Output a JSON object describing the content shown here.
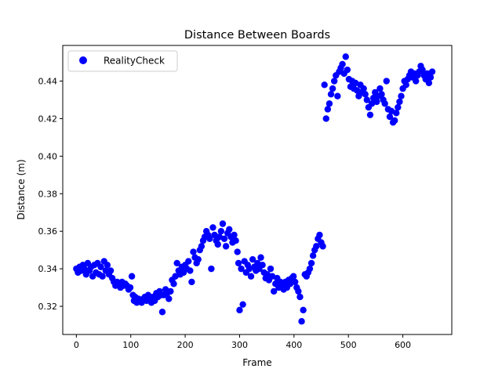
{
  "chart_data": {
    "type": "scatter",
    "title": "Distance Between Boards",
    "xlabel": "Frame",
    "ylabel": "Distance (m)",
    "xlim": [
      -25,
      690
    ],
    "ylim": [
      0.305,
      0.459
    ],
    "xticks": [
      {
        "value": 0,
        "label": "0"
      },
      {
        "value": 100,
        "label": "100"
      },
      {
        "value": 200,
        "label": "200"
      },
      {
        "value": 300,
        "label": "300"
      },
      {
        "value": 400,
        "label": "400"
      },
      {
        "value": 500,
        "label": "500"
      },
      {
        "value": 600,
        "label": "600"
      }
    ],
    "yticks": [
      {
        "value": 0.32,
        "label": "0.32"
      },
      {
        "value": 0.34,
        "label": "0.34"
      },
      {
        "value": 0.36,
        "label": "0.36"
      },
      {
        "value": 0.38,
        "label": "0.38"
      },
      {
        "value": 0.4,
        "label": "0.40"
      },
      {
        "value": 0.42,
        "label": "0.42"
      },
      {
        "value": 0.44,
        "label": "0.44"
      }
    ],
    "grid": false,
    "legend": {
      "position": "top-left",
      "entries": [
        "RealityCheck"
      ]
    },
    "series": [
      {
        "name": "RealityCheck",
        "color": "#0000ff",
        "marker": "circle",
        "points": [
          [
            0,
            0.34
          ],
          [
            3,
            0.338
          ],
          [
            6,
            0.341
          ],
          [
            9,
            0.339
          ],
          [
            12,
            0.342
          ],
          [
            15,
            0.34
          ],
          [
            18,
            0.337
          ],
          [
            21,
            0.343
          ],
          [
            24,
            0.339
          ],
          [
            27,
            0.341
          ],
          [
            30,
            0.336
          ],
          [
            33,
            0.342
          ],
          [
            36,
            0.338
          ],
          [
            39,
            0.343
          ],
          [
            42,
            0.337
          ],
          [
            45,
            0.341
          ],
          [
            48,
            0.336
          ],
          [
            51,
            0.344
          ],
          [
            54,
            0.339
          ],
          [
            57,
            0.342
          ],
          [
            60,
            0.337
          ],
          [
            63,
            0.339
          ],
          [
            66,
            0.335
          ],
          [
            69,
            0.333
          ],
          [
            72,
            0.331
          ],
          [
            75,
            0.333
          ],
          [
            78,
            0.332
          ],
          [
            81,
            0.33
          ],
          [
            84,
            0.333
          ],
          [
            87,
            0.331
          ],
          [
            90,
            0.332
          ],
          [
            93,
            0.331
          ],
          [
            96,
            0.329
          ],
          [
            99,
            0.33
          ],
          [
            102,
            0.336
          ],
          [
            104,
            0.326
          ],
          [
            106,
            0.323
          ],
          [
            108,
            0.325
          ],
          [
            111,
            0.322
          ],
          [
            114,
            0.324
          ],
          [
            117,
            0.323
          ],
          [
            120,
            0.322
          ],
          [
            123,
            0.324
          ],
          [
            126,
            0.325
          ],
          [
            129,
            0.323
          ],
          [
            132,
            0.326
          ],
          [
            135,
            0.324
          ],
          [
            138,
            0.322
          ],
          [
            141,
            0.325
          ],
          [
            144,
            0.323
          ],
          [
            147,
            0.327
          ],
          [
            150,
            0.325
          ],
          [
            153,
            0.328
          ],
          [
            156,
            0.326
          ],
          [
            158,
            0.317
          ],
          [
            161,
            0.326
          ],
          [
            164,
            0.329
          ],
          [
            167,
            0.327
          ],
          [
            170,
            0.324
          ],
          [
            173,
            0.328
          ],
          [
            176,
            0.334
          ],
          [
            179,
            0.332
          ],
          [
            182,
            0.336
          ],
          [
            185,
            0.343
          ],
          [
            188,
            0.339
          ],
          [
            191,
            0.337
          ],
          [
            194,
            0.341
          ],
          [
            197,
            0.338
          ],
          [
            200,
            0.342
          ],
          [
            203,
            0.34
          ],
          [
            206,
            0.344
          ],
          [
            209,
            0.339
          ],
          [
            212,
            0.333
          ],
          [
            215,
            0.349
          ],
          [
            218,
            0.346
          ],
          [
            221,
            0.343
          ],
          [
            224,
            0.345
          ],
          [
            227,
            0.35
          ],
          [
            230,
            0.352
          ],
          [
            233,
            0.355
          ],
          [
            236,
            0.357
          ],
          [
            239,
            0.36
          ],
          [
            242,
            0.358
          ],
          [
            245,
            0.356
          ],
          [
            248,
            0.34
          ],
          [
            251,
            0.362
          ],
          [
            254,
            0.358
          ],
          [
            257,
            0.355
          ],
          [
            260,
            0.353
          ],
          [
            263,
            0.357
          ],
          [
            266,
            0.36
          ],
          [
            269,
            0.364
          ],
          [
            272,
            0.356
          ],
          [
            275,
            0.352
          ],
          [
            278,
            0.359
          ],
          [
            281,
            0.361
          ],
          [
            284,
            0.357
          ],
          [
            287,
            0.354
          ],
          [
            290,
            0.358
          ],
          [
            293,
            0.355
          ],
          [
            296,
            0.349
          ],
          [
            298,
            0.343
          ],
          [
            300,
            0.318
          ],
          [
            303,
            0.34
          ],
          [
            306,
            0.321
          ],
          [
            309,
            0.344
          ],
          [
            312,
            0.338
          ],
          [
            315,
            0.342
          ],
          [
            318,
            0.34
          ],
          [
            321,
            0.336
          ],
          [
            324,
            0.345
          ],
          [
            327,
            0.341
          ],
          [
            330,
            0.339
          ],
          [
            333,
            0.343
          ],
          [
            336,
            0.34
          ],
          [
            339,
            0.346
          ],
          [
            342,
            0.342
          ],
          [
            345,
            0.338
          ],
          [
            348,
            0.335
          ],
          [
            351,
            0.337
          ],
          [
            354,
            0.334
          ],
          [
            357,
            0.34
          ],
          [
            360,
            0.336
          ],
          [
            363,
            0.328
          ],
          [
            366,
            0.332
          ],
          [
            369,
            0.335
          ],
          [
            372,
            0.33
          ],
          [
            375,
            0.333
          ],
          [
            378,
            0.331
          ],
          [
            381,
            0.329
          ],
          [
            384,
            0.333
          ],
          [
            387,
            0.33
          ],
          [
            390,
            0.334
          ],
          [
            393,
            0.332
          ],
          [
            396,
            0.335
          ],
          [
            399,
            0.336
          ],
          [
            402,
            0.333
          ],
          [
            405,
            0.33
          ],
          [
            408,
            0.328
          ],
          [
            411,
            0.325
          ],
          [
            414,
            0.312
          ],
          [
            417,
            0.318
          ],
          [
            420,
            0.337
          ],
          [
            423,
            0.336
          ],
          [
            426,
            0.338
          ],
          [
            429,
            0.34
          ],
          [
            432,
            0.343
          ],
          [
            435,
            0.347
          ],
          [
            438,
            0.35
          ],
          [
            441,
            0.352
          ],
          [
            444,
            0.356
          ],
          [
            447,
            0.358
          ],
          [
            450,
            0.354
          ],
          [
            453,
            0.352
          ],
          [
            456,
            0.438
          ],
          [
            459,
            0.42
          ],
          [
            462,
            0.425
          ],
          [
            465,
            0.428
          ],
          [
            468,
            0.433
          ],
          [
            471,
            0.436
          ],
          [
            474,
            0.44
          ],
          [
            477,
            0.443
          ],
          [
            480,
            0.432
          ],
          [
            483,
            0.445
          ],
          [
            486,
            0.447
          ],
          [
            489,
            0.449
          ],
          [
            492,
            0.444
          ],
          [
            495,
            0.453
          ],
          [
            498,
            0.446
          ],
          [
            501,
            0.441
          ],
          [
            504,
            0.437
          ],
          [
            507,
            0.44
          ],
          [
            510,
            0.436
          ],
          [
            513,
            0.439
          ],
          [
            516,
            0.435
          ],
          [
            519,
            0.432
          ],
          [
            522,
            0.438
          ],
          [
            525,
            0.434
          ],
          [
            528,
            0.436
          ],
          [
            531,
            0.433
          ],
          [
            534,
            0.43
          ],
          [
            537,
            0.426
          ],
          [
            540,
            0.422
          ],
          [
            543,
            0.428
          ],
          [
            546,
            0.431
          ],
          [
            549,
            0.434
          ],
          [
            552,
            0.429
          ],
          [
            555,
            0.432
          ],
          [
            558,
            0.436
          ],
          [
            561,
            0.433
          ],
          [
            564,
            0.43
          ],
          [
            567,
            0.428
          ],
          [
            570,
            0.44
          ],
          [
            573,
            0.425
          ],
          [
            576,
            0.421
          ],
          [
            579,
            0.424
          ],
          [
            582,
            0.418
          ],
          [
            585,
            0.419
          ],
          [
            588,
            0.423
          ],
          [
            591,
            0.426
          ],
          [
            594,
            0.429
          ],
          [
            597,
            0.432
          ],
          [
            600,
            0.436
          ],
          [
            603,
            0.44
          ],
          [
            606,
            0.438
          ],
          [
            609,
            0.441
          ],
          [
            612,
            0.443
          ],
          [
            615,
            0.445
          ],
          [
            618,
            0.442
          ],
          [
            621,
            0.444
          ],
          [
            624,
            0.44
          ],
          [
            627,
            0.443
          ],
          [
            630,
            0.445
          ],
          [
            633,
            0.448
          ],
          [
            636,
            0.446
          ],
          [
            639,
            0.443
          ],
          [
            642,
            0.441
          ],
          [
            645,
            0.444
          ],
          [
            648,
            0.439
          ],
          [
            651,
            0.442
          ],
          [
            654,
            0.445
          ]
        ]
      }
    ]
  }
}
